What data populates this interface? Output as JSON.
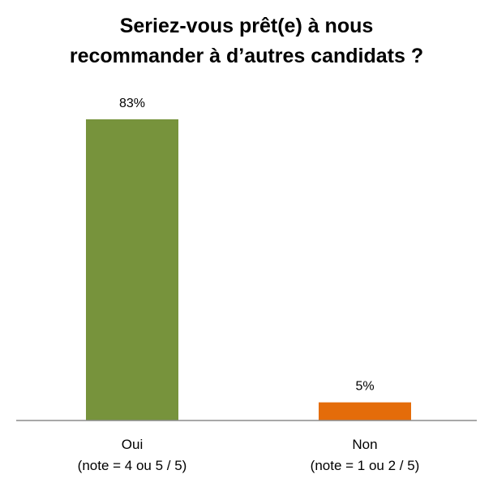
{
  "chart_data": {
    "type": "bar",
    "title_lines": [
      "Seriez-vous prêt(e) à nous",
      "recommander à d’autres candidats ?"
    ],
    "categories": [
      {
        "line1": "Oui",
        "line2": "(note = 4 ou 5 / 5)"
      },
      {
        "line1": "Non",
        "line2": "(note = 1 ou 2 / 5)"
      }
    ],
    "values": [
      83,
      5
    ],
    "data_labels": [
      "83%",
      "5%"
    ],
    "colors": [
      "#77933C",
      "#E46C0A"
    ],
    "ylim": [
      0,
      100
    ],
    "grid": false,
    "legend": "none"
  }
}
